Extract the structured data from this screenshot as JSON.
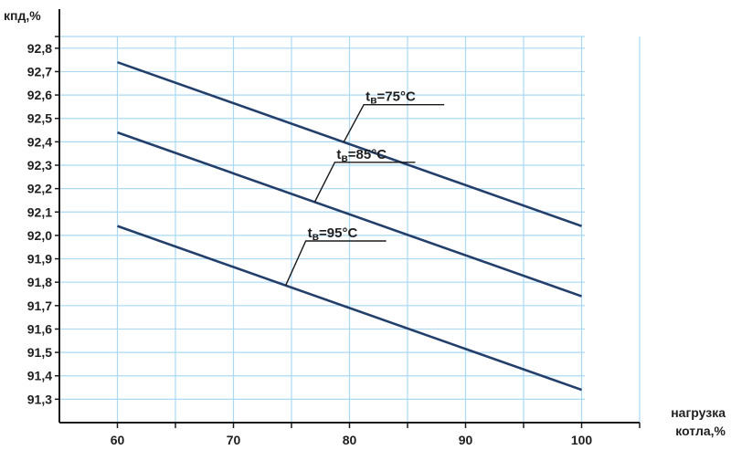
{
  "chart_data": {
    "type": "line",
    "title": "",
    "ylabel": "кпд,%",
    "xlabel_lines": [
      "нагрузка",
      "котла,%"
    ],
    "xlim": [
      55,
      105
    ],
    "ylim": [
      91.2,
      92.85
    ],
    "x_ticks": [
      60,
      70,
      80,
      90,
      100
    ],
    "x_tick_labels": [
      "60",
      "70",
      "80",
      "90",
      "100"
    ],
    "y_ticks": [
      91.3,
      91.4,
      91.5,
      91.6,
      91.7,
      91.8,
      91.9,
      92.0,
      92.1,
      92.2,
      92.3,
      92.4,
      92.5,
      92.6,
      92.7,
      92.8
    ],
    "y_tick_labels": [
      "91,3",
      "91,4",
      "91,5",
      "91,6",
      "91,7",
      "91,8",
      "91,9",
      "92,0",
      "92,1",
      "92,2",
      "92,3",
      "92,4",
      "92,5",
      "92,6",
      "92,7",
      "92,8"
    ],
    "grid": true,
    "series": [
      {
        "name": "tв=75°C",
        "label_main": "t",
        "label_sub": "в",
        "label_rest": "=75°C",
        "x": [
          60,
          100
        ],
        "y": [
          92.74,
          92.04
        ],
        "color": "#233f6b",
        "label_at_x": 79.5,
        "label_offset_y": 0.16
      },
      {
        "name": "tв=85°C",
        "label_main": "t",
        "label_sub": "в",
        "label_rest": "=85°C",
        "x": [
          60,
          100
        ],
        "y": [
          92.44,
          91.74
        ],
        "color": "#233f6b",
        "label_at_x": 77.0,
        "label_offset_y": 0.17
      },
      {
        "name": "tв=95°C",
        "label_main": "t",
        "label_sub": "в",
        "label_rest": "=95°C",
        "x": [
          60,
          100
        ],
        "y": [
          92.04,
          91.34
        ],
        "color": "#233f6b",
        "label_at_x": 74.5,
        "label_offset_y": 0.19
      }
    ]
  }
}
